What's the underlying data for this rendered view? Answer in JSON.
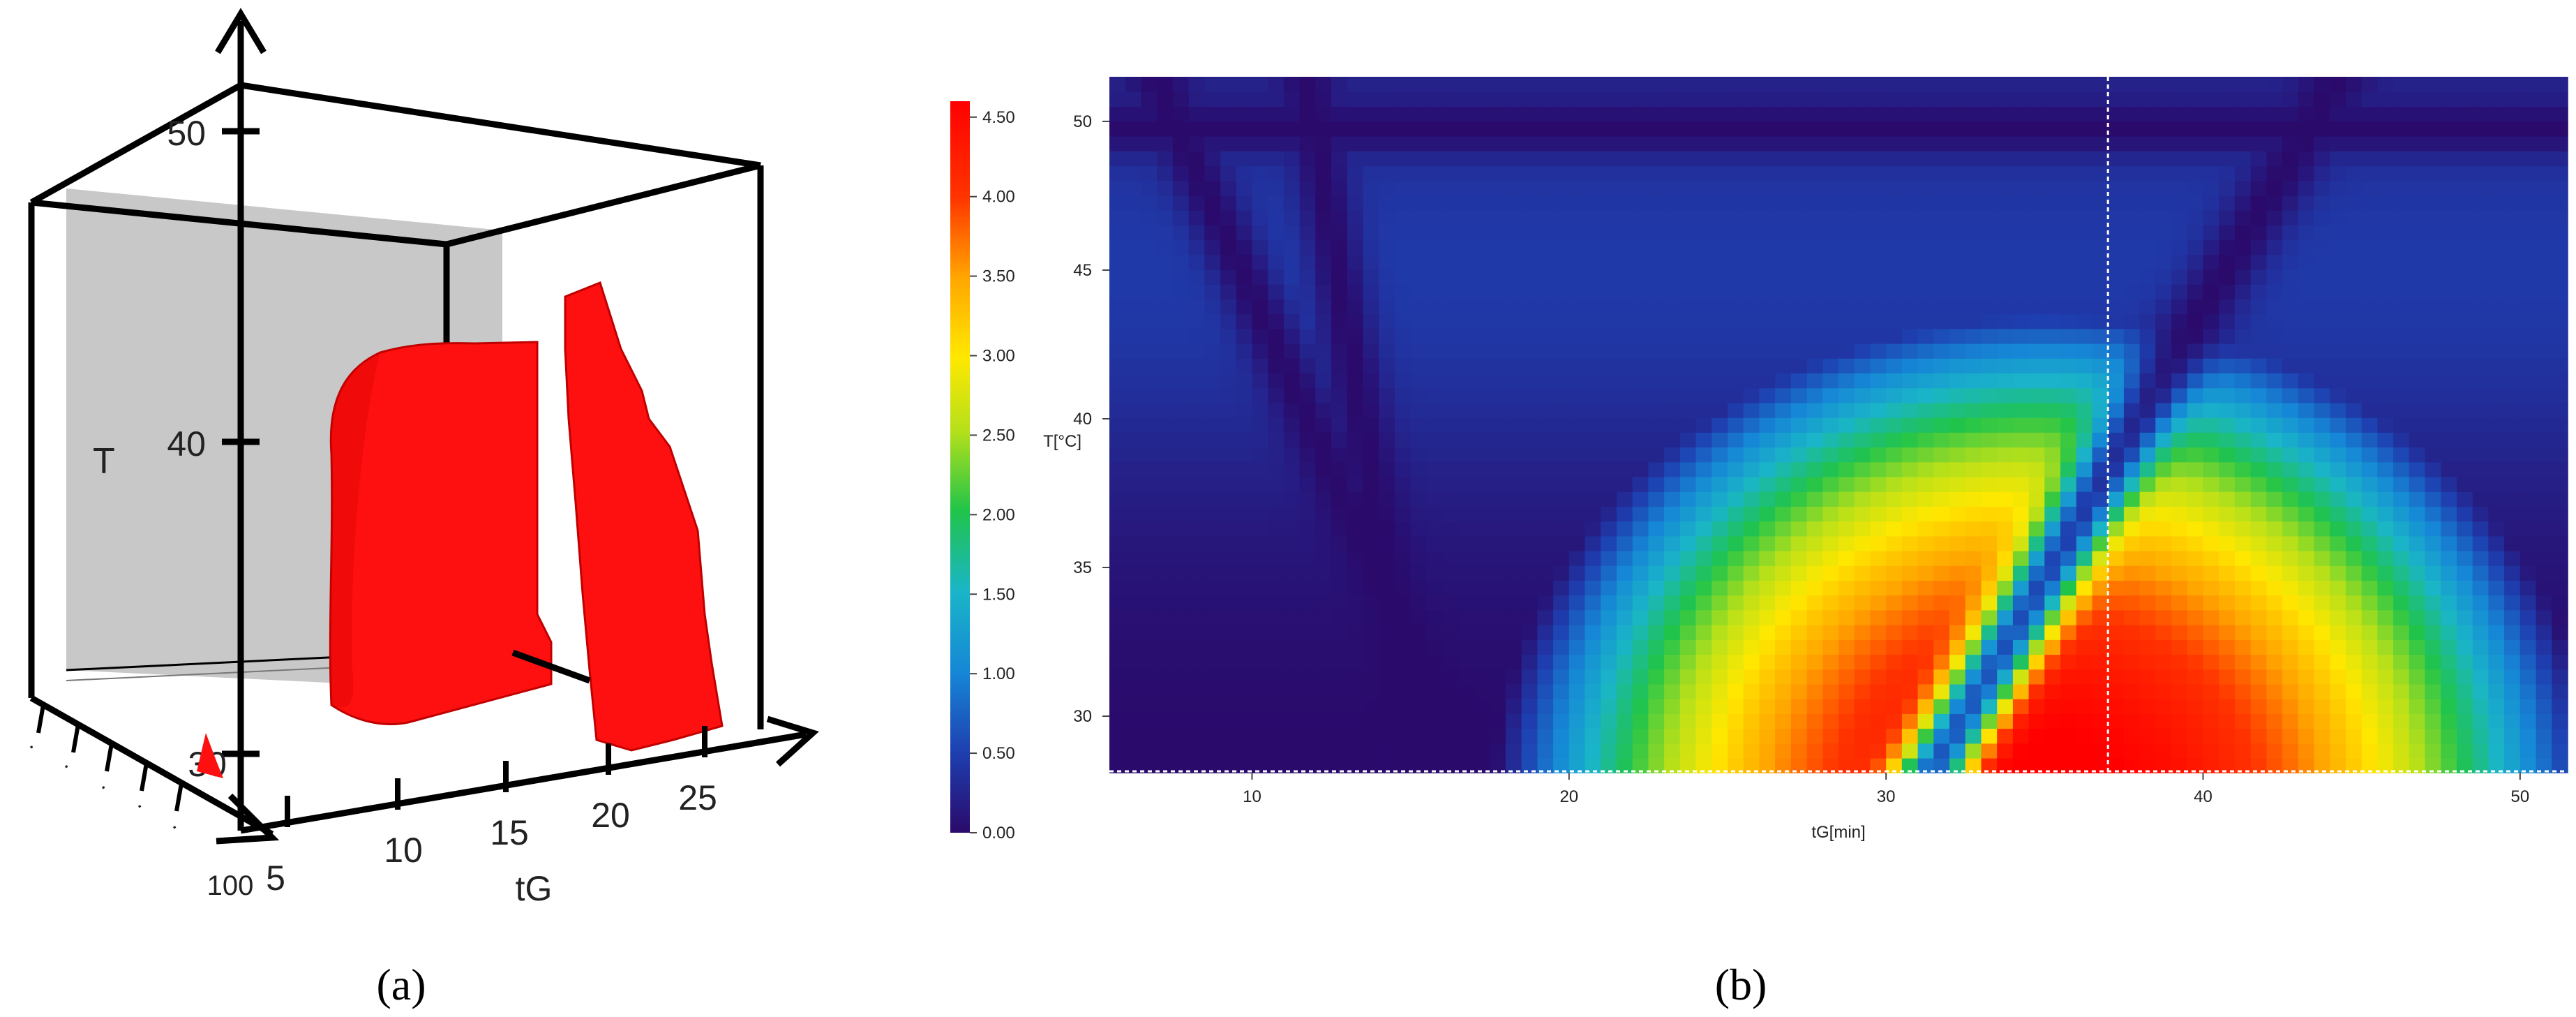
{
  "panels": {
    "a_caption": "(a)",
    "b_caption": "(b)"
  },
  "chart_data": [
    {
      "type": "surface3d",
      "panel": "a",
      "x_axis_label": "tG",
      "z_axis_label": "T",
      "x_ticks": [
        "5",
        "10",
        "15",
        "20",
        "25"
      ],
      "z_ticks": [
        "30",
        "40",
        "50"
      ],
      "depth_ticks": [
        "",
        "",
        "",
        "",
        "",
        "100"
      ],
      "surface_color": "#ff0000",
      "back_plane_color": "#c8c8c8"
    },
    {
      "type": "heatmap",
      "panel": "b",
      "xlabel": "tG[min]",
      "ylabel": "T[°C]",
      "x_ticks": [
        10,
        20,
        30,
        40,
        50
      ],
      "y_ticks": [
        30,
        35,
        40,
        45,
        50
      ],
      "xlim": [
        5.5,
        51.5
      ],
      "ylim": [
        28.1,
        51.5
      ],
      "colorbar": {
        "min": 0.0,
        "max": 4.6,
        "ticks": [
          "0.00",
          "0.50",
          "1.00",
          "1.50",
          "2.00",
          "2.50",
          "3.00",
          "3.50",
          "4.00",
          "4.50"
        ],
        "colors": [
          "#2a0a6b",
          "#1e3fb0",
          "#1687d6",
          "#1ab5c8",
          "#20c44a",
          "#b6e01a",
          "#ffe800",
          "#ffa500",
          "#ff3300",
          "#ff0000"
        ]
      },
      "marker_line_x": 37
    }
  ]
}
